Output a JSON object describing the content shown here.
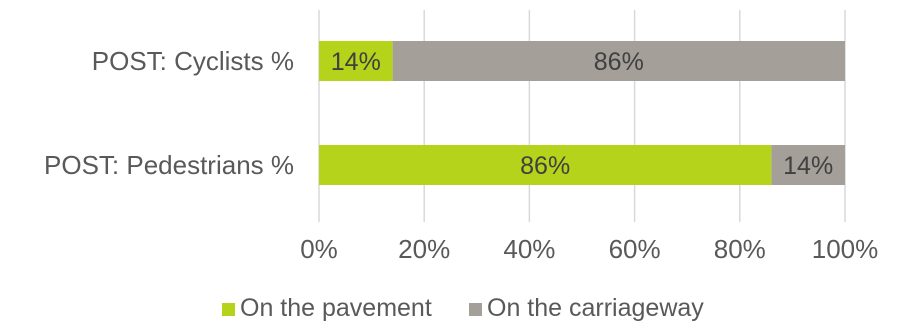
{
  "chart_data": {
    "type": "bar",
    "orientation": "horizontal",
    "stacked": true,
    "title": "",
    "xlabel": "",
    "ylabel": "",
    "categories": [
      "POST: Cyclists %",
      "POST: Pedestrians %"
    ],
    "series": [
      {
        "name": "On the pavement",
        "values": [
          14,
          86
        ],
        "labels": [
          "14%",
          "86%"
        ],
        "color": "#b5d31a"
      },
      {
        "name": "On the carriageway",
        "values": [
          86,
          14
        ],
        "labels": [
          "86%",
          "14%"
        ],
        "color": "#a59f99"
      }
    ],
    "xlim": [
      0,
      100
    ],
    "x_ticks": [
      0,
      20,
      40,
      60,
      80,
      100
    ],
    "x_tick_labels": [
      "0%",
      "20%",
      "40%",
      "60%",
      "80%",
      "100%"
    ],
    "grid": "vertical",
    "legend_position": "bottom"
  }
}
